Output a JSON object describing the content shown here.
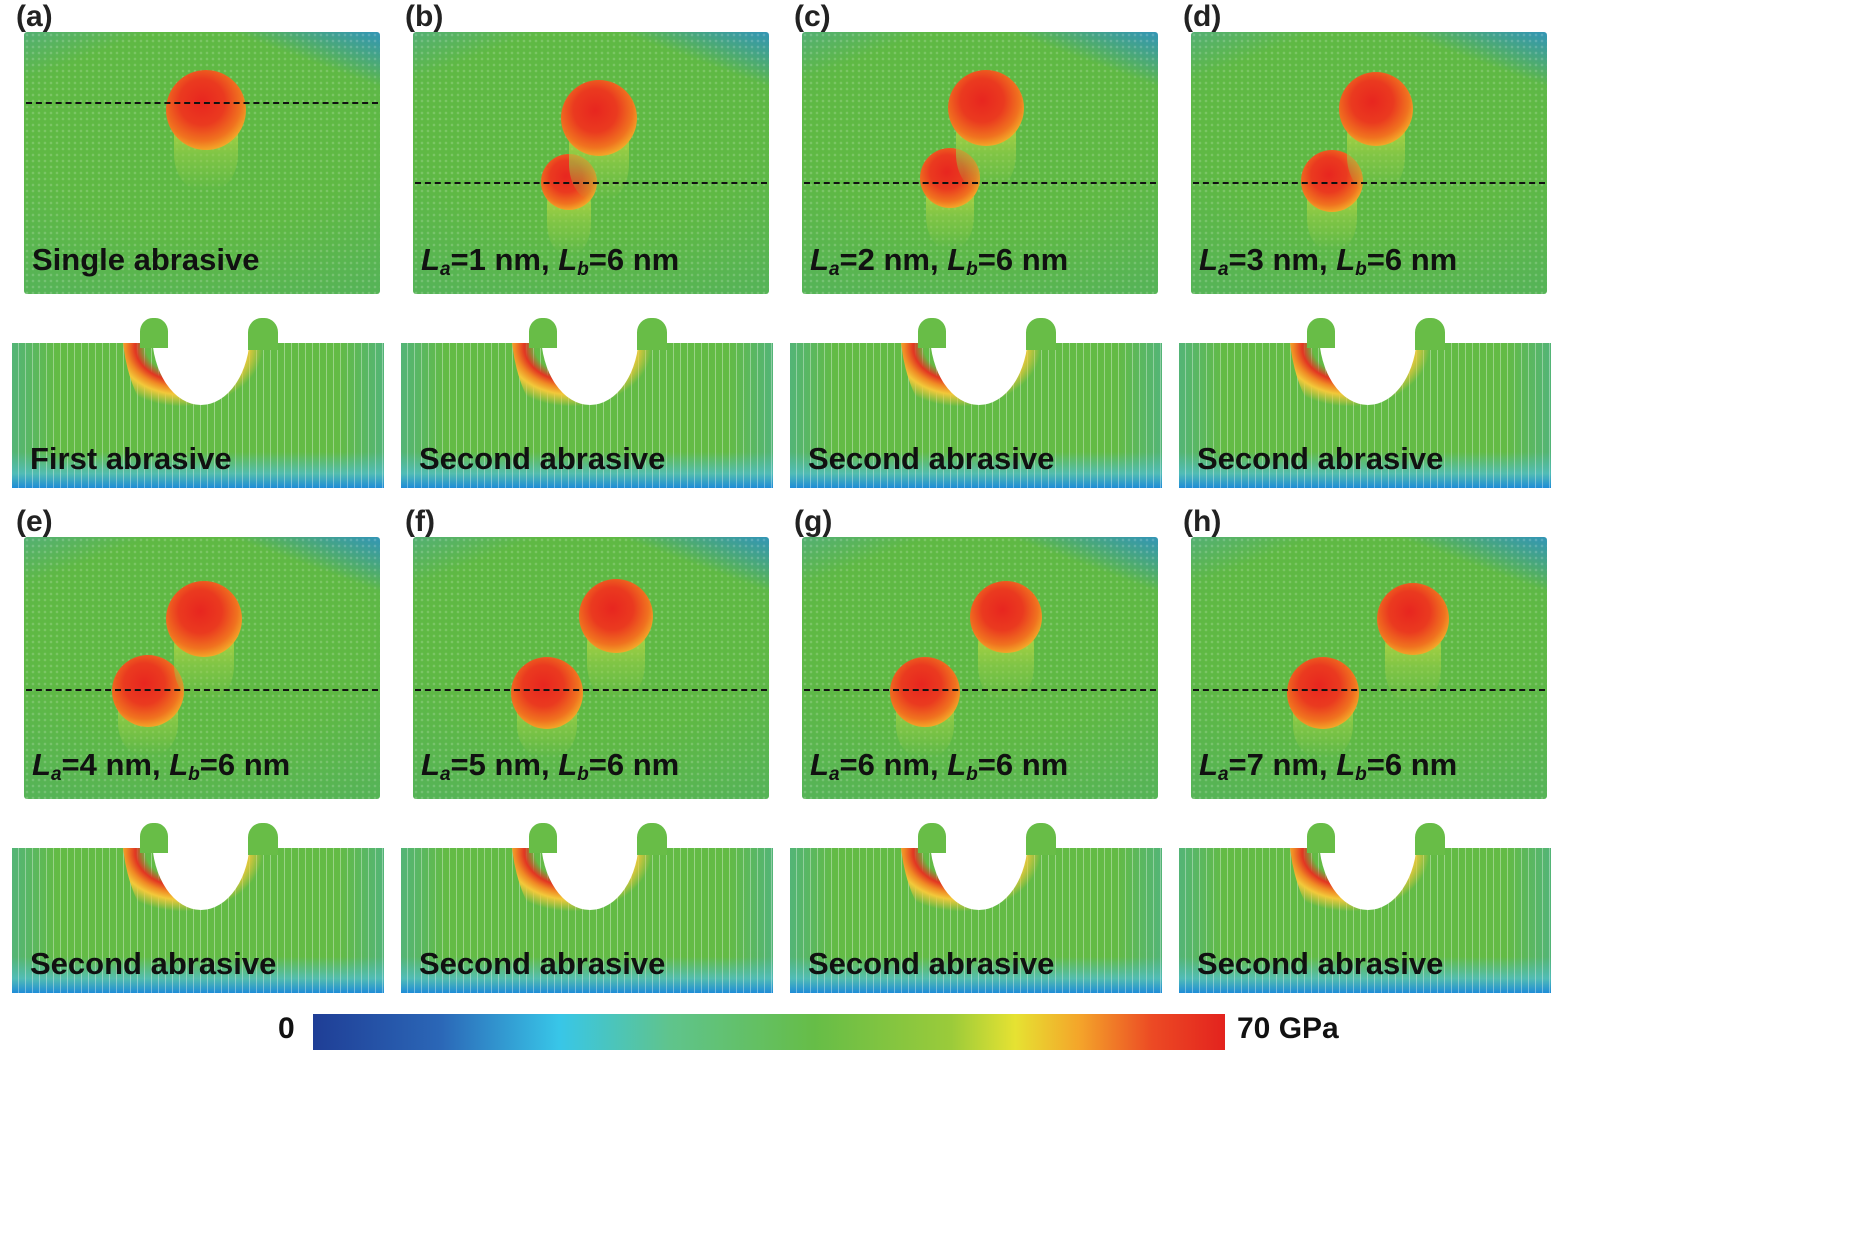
{
  "panels": [
    {
      "letter": "(a)",
      "caption": {
        "type": "text",
        "text": "Single abrasive"
      },
      "bottom_label": "First abrasive"
    },
    {
      "letter": "(b)",
      "caption": {
        "type": "lalb",
        "prefix_a": "L",
        "sub_a": "a",
        "val_a": "=1 nm, ",
        "prefix_b": "L",
        "sub_b": "b",
        "val_b": "=6 nm"
      },
      "bottom_label": "Second abrasive"
    },
    {
      "letter": "(c)",
      "caption": {
        "type": "lalb",
        "prefix_a": "L",
        "sub_a": "a",
        "val_a": "=2 nm, ",
        "prefix_b": "L",
        "sub_b": "b",
        "val_b": "=6 nm"
      },
      "bottom_label": "Second abrasive"
    },
    {
      "letter": "(d)",
      "caption": {
        "type": "lalb",
        "prefix_a": "L",
        "sub_a": "a",
        "val_a": "=3 nm, ",
        "prefix_b": "L",
        "sub_b": "b",
        "val_b": "=6 nm"
      },
      "bottom_label": "Second abrasive"
    },
    {
      "letter": "(e)",
      "caption": {
        "type": "lalb",
        "prefix_a": "L",
        "sub_a": "a",
        "val_a": "=4 nm, ",
        "prefix_b": "L",
        "sub_b": "b",
        "val_b": "=6 nm"
      },
      "bottom_label": "Second abrasive"
    },
    {
      "letter": "(f)",
      "caption": {
        "type": "lalb",
        "prefix_a": "L",
        "sub_a": "a",
        "val_a": "=5 nm, ",
        "prefix_b": "L",
        "sub_b": "b",
        "val_b": "=6 nm"
      },
      "bottom_label": "Second abrasive"
    },
    {
      "letter": "(g)",
      "caption": {
        "type": "lalb",
        "prefix_a": "L",
        "sub_a": "a",
        "val_a": "=6 nm, ",
        "prefix_b": "L",
        "sub_b": "b",
        "val_b": "=6 nm"
      },
      "bottom_label": "Second abrasive"
    },
    {
      "letter": "(h)",
      "caption": {
        "type": "lalb",
        "prefix_a": "L",
        "sub_a": "a",
        "val_a": "=7 nm, ",
        "prefix_b": "L",
        "sub_b": "b",
        "val_b": "=6 nm"
      },
      "bottom_label": "Second abrasive"
    }
  ],
  "colorbar": {
    "min_label": "0",
    "max_label": "70 GPa",
    "colors": [
      "#1f3e96",
      "#38c6e8",
      "#66bd47",
      "#e6e232",
      "#e3231e"
    ]
  }
}
